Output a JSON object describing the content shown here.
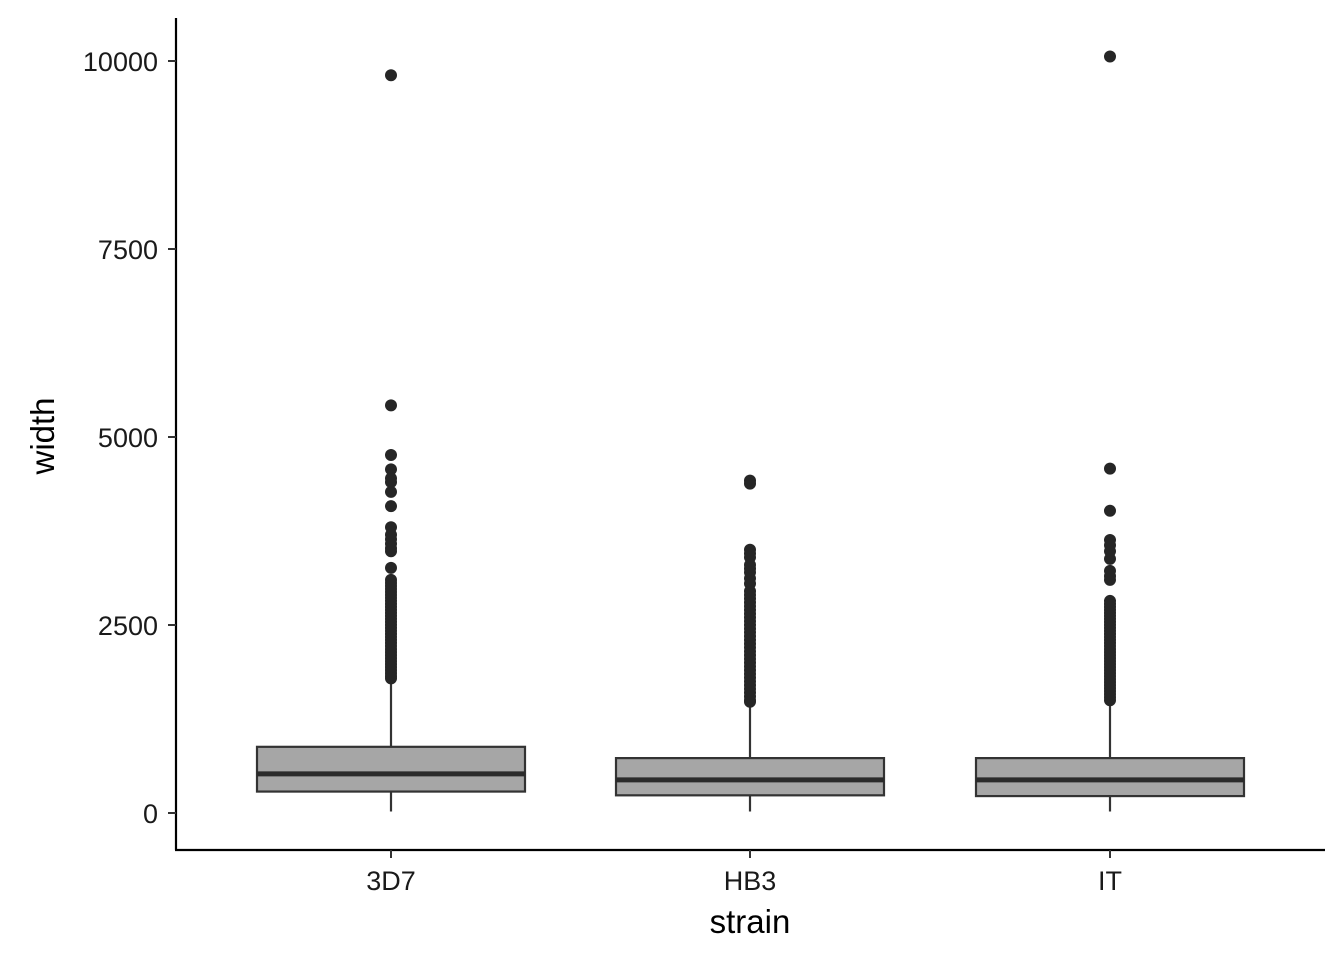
{
  "chart_data": {
    "type": "box",
    "title": "",
    "xlabel": "strain",
    "ylabel": "width",
    "ylim": [
      -500,
      10600
    ],
    "y_ticks": [
      0,
      2500,
      5000,
      7500,
      10000
    ],
    "y_tick_labels": [
      "0",
      "2500",
      "5000",
      "7500",
      "10000"
    ],
    "categories": [
      "3D7",
      "HB3",
      "IT"
    ],
    "grid": false,
    "legend": "none",
    "box_fill": "#a6a6a6",
    "line_color": "#333333",
    "boxes": [
      {
        "category": "3D7",
        "whisker_low": 20,
        "q1": 285,
        "median": 520,
        "q3": 880,
        "whisker_high": 1760,
        "outliers": [
          9810,
          5420,
          4760,
          4570,
          4450,
          4400,
          4270,
          4080,
          3800,
          3700,
          3640,
          3580,
          3520,
          3480,
          3260,
          3100,
          3060,
          3020,
          2980,
          2940,
          2900,
          2860,
          2820,
          2780,
          2740,
          2700,
          2660,
          2620,
          2580,
          2540,
          2500,
          2460,
          2420,
          2380,
          2340,
          2300,
          2260,
          2220,
          2180,
          2140,
          2100,
          2060,
          2020,
          1980,
          1940,
          1900,
          1860,
          1820,
          1790
        ]
      },
      {
        "category": "HB3",
        "whisker_low": 20,
        "q1": 235,
        "median": 440,
        "q3": 730,
        "whisker_high": 1450,
        "outliers": [
          4420,
          4380,
          3500,
          3450,
          3400,
          3300,
          3250,
          3200,
          3120,
          3050,
          2950,
          2900,
          2850,
          2800,
          2750,
          2700,
          2650,
          2600,
          2550,
          2500,
          2450,
          2400,
          2350,
          2300,
          2250,
          2200,
          2150,
          2100,
          2050,
          2000,
          1950,
          1900,
          1850,
          1800,
          1750,
          1700,
          1650,
          1600,
          1550,
          1500,
          1480
        ]
      },
      {
        "category": "IT",
        "whisker_low": 20,
        "q1": 225,
        "median": 440,
        "q3": 730,
        "whisker_high": 1480,
        "outliers": [
          10060,
          4580,
          4020,
          3630,
          3560,
          3480,
          3380,
          3220,
          3150,
          3100,
          2820,
          2780,
          2740,
          2700,
          2660,
          2620,
          2580,
          2540,
          2500,
          2460,
          2420,
          2380,
          2340,
          2300,
          2260,
          2220,
          2180,
          2140,
          2100,
          2060,
          2020,
          1980,
          1940,
          1900,
          1860,
          1820,
          1780,
          1740,
          1700,
          1660,
          1620,
          1580,
          1540,
          1500
        ]
      }
    ]
  }
}
